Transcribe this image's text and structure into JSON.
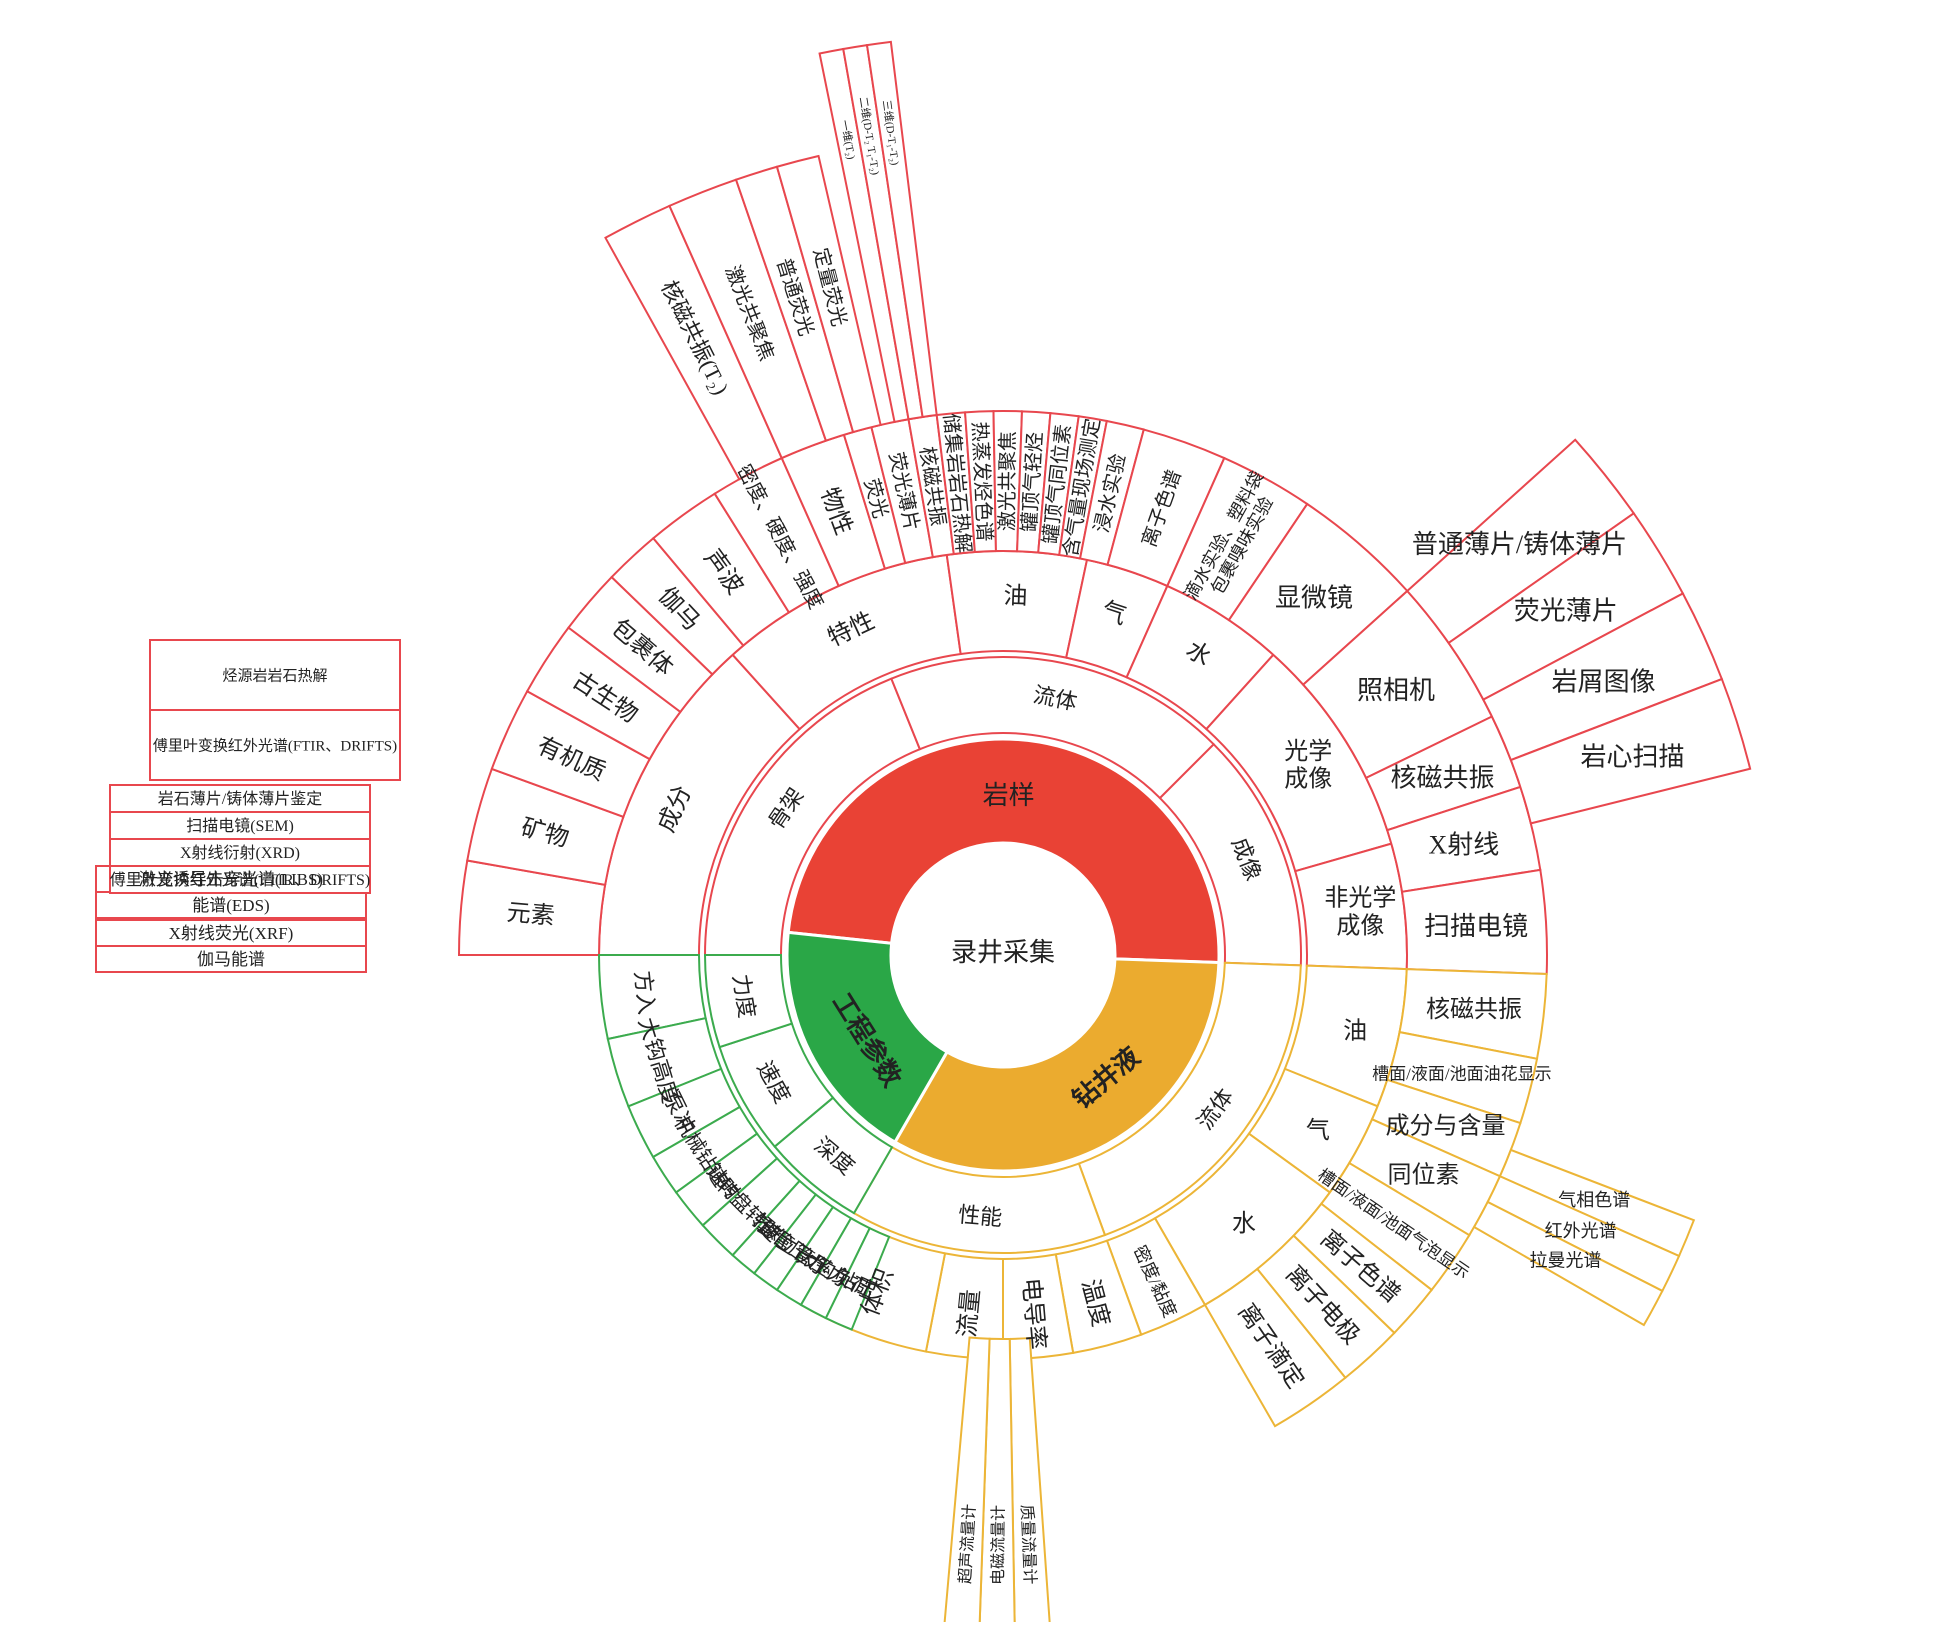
{
  "center": "录井采集",
  "colors": {
    "rock": "#e94235",
    "fluid": "#ebab2f",
    "eng": "#2aa747",
    "rock_line": "#e8474e",
    "fluid_line": "#ecb537",
    "eng_line": "#3cab4e"
  },
  "core": [
    {
      "id": "rock",
      "label": "岩样"
    },
    {
      "id": "fluid",
      "label": "钻井液"
    },
    {
      "id": "eng",
      "label": "工程参数"
    }
  ],
  "rock": {
    "l2": [
      "骨架",
      "流体",
      "成像"
    ],
    "l3": [
      "成分",
      "特性",
      "油",
      "气",
      "水",
      "光学成像",
      "非光学成像"
    ],
    "l4": [
      "元素",
      "矿物",
      "有机质",
      "古生物",
      "包裹体",
      "伽马",
      "声波",
      "密度、硬度、强度",
      "物性",
      "荧光",
      "荧光薄片",
      "核磁共振",
      "储集岩岩石热解",
      "热蒸发烃色谱",
      "激光共聚焦",
      "罐顶气轻烃",
      "罐顶气同位素",
      "含气量现场测定",
      "浸水实验",
      "离子色谱",
      "滴水实验、塑料袋包裹嗅味实验",
      "显微镜",
      "照相机",
      "核磁共振",
      "X射线",
      "扫描电镜"
    ],
    "l5_elements": [
      "X射线荧光(XRF)",
      "伽马能谱",
      "激光诱导击穿光谱(LIBS)",
      "能谱(EDS)"
    ],
    "l5_minerals": [
      "岩石薄片/铸体薄片鉴定",
      "扫描电镜(SEM)",
      "X射线衍射(XRD)",
      "傅里叶变换红外光谱(FTIR、DRIFTS)"
    ],
    "l5_organic": [
      "烃源岩岩石热解",
      "傅里叶变换红外光谱(FTIR、DRIFTS)"
    ],
    "l5_fluor": [
      "核磁共振(T₂)",
      "激光共聚焦",
      "普通荧光",
      "定量荧光"
    ],
    "l6_nmr": [
      "一维(T₂)",
      "二维(D-T₂ T₁-T₂)",
      "三维(D-T₁-T₂)"
    ],
    "l5_micro": [
      "普通薄片/铸体薄片",
      "荧光薄片",
      "岩屑图像",
      "岩心扫描"
    ]
  },
  "fluid": {
    "l2": [
      "流体",
      "性能"
    ],
    "l3": [
      "油",
      "气",
      "水",
      "密度/黏度",
      "温度",
      "电导率",
      "流量",
      "体积"
    ],
    "l4": [
      "核磁共振",
      "槽面/液面/池面油花显示",
      "成分与含量",
      "同位素",
      "槽面/液面/池面气泡显示",
      "离子色谱",
      "离子电极",
      "离子滴定"
    ],
    "l5_gas": [
      "气相色谱",
      "红外光谱",
      "拉曼光谱"
    ],
    "l4_flow": [
      "质量流量计",
      "电磁流量计",
      "超声流量计"
    ]
  },
  "eng": {
    "l2": [
      "深度",
      "速度",
      "力度"
    ],
    "l3": [
      "方入",
      "大钩高度",
      "泵冲",
      "机械钻速",
      "钻时",
      "转盘转速",
      "扭矩",
      "套管压力",
      "立管压力",
      "大钩负荷",
      "钻压"
    ]
  }
}
